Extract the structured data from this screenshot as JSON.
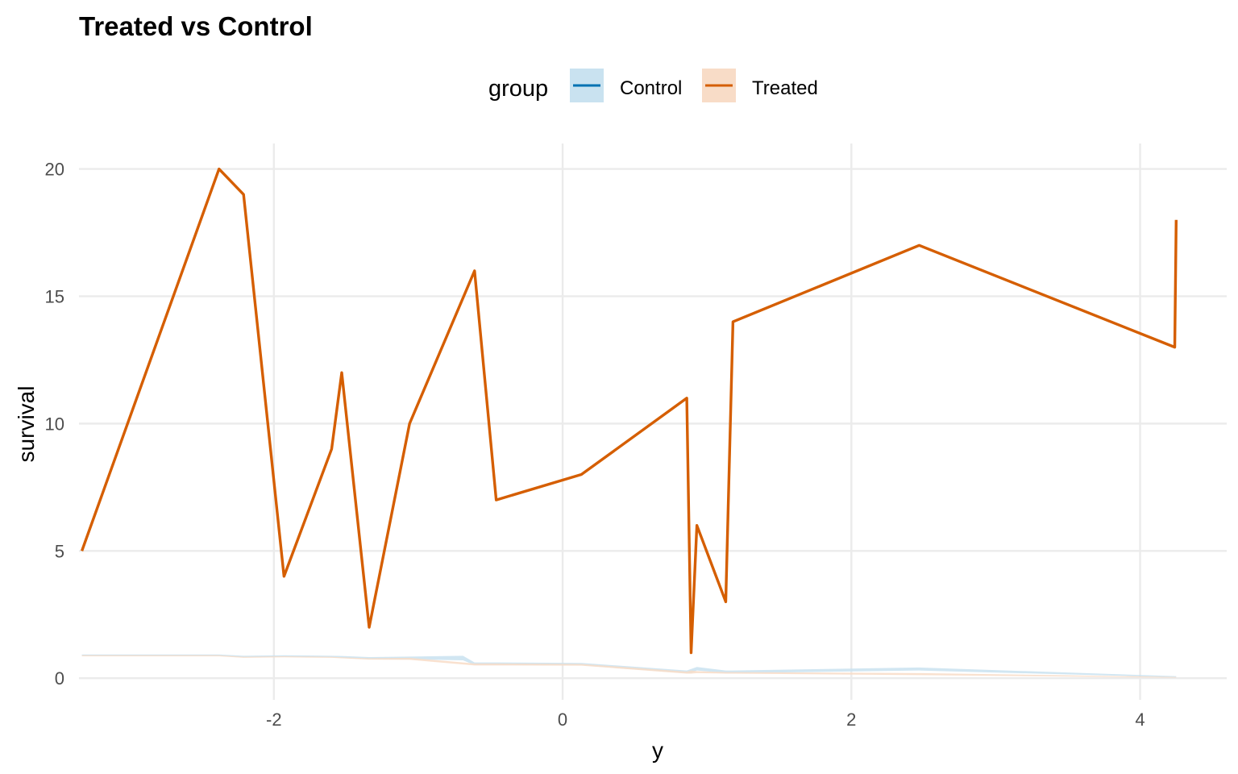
{
  "chart_data": {
    "type": "line",
    "title": "Treated vs Control",
    "xlabel": "y",
    "ylabel": "survival",
    "xlim": [
      -3.35,
      4.6
    ],
    "ylim": [
      -0.85,
      21
    ],
    "x_ticks": [
      -2,
      0,
      2,
      4
    ],
    "x_tick_labels": [
      "-2",
      "0",
      "2",
      "4"
    ],
    "y_ticks": [
      0,
      5,
      10,
      15,
      20
    ],
    "y_tick_labels": [
      "0",
      "5",
      "10",
      "15",
      "20"
    ],
    "grid": true,
    "legend": {
      "title": "group",
      "position": "top",
      "entries": [
        "Control",
        "Treated"
      ]
    },
    "series": [
      {
        "name": "Control",
        "color": "#0072B2",
        "fill": "#c9e2f0",
        "x": [
          -3.33,
          -2.38,
          -2.21,
          -1.93,
          -1.6,
          -1.53,
          -1.34,
          -1.06,
          -0.69,
          -0.61,
          -0.46,
          0.13,
          0.86,
          0.89,
          0.93,
          1.13,
          1.18,
          2.47,
          4.24,
          4.25
        ],
        "lower": [
          0.88,
          0.88,
          0.82,
          0.84,
          0.82,
          0.8,
          0.75,
          0.74,
          0.7,
          0.52,
          0.52,
          0.51,
          0.2,
          0.2,
          0.3,
          0.2,
          0.2,
          0.3,
          0.04,
          0.04
        ],
        "upper": [
          0.93,
          0.93,
          0.88,
          0.9,
          0.88,
          0.87,
          0.83,
          0.85,
          0.88,
          0.62,
          0.62,
          0.6,
          0.3,
          0.36,
          0.44,
          0.3,
          0.3,
          0.42,
          0.08,
          0.08
        ]
      },
      {
        "name": "Treated",
        "color": "#D55E00",
        "fill": "#f8dcc7",
        "x": [
          -3.33,
          -2.38,
          -2.21,
          -1.93,
          -1.6,
          -1.53,
          -1.34,
          -1.06,
          -0.61,
          -0.46,
          0.13,
          0.86,
          0.89,
          0.93,
          1.13,
          1.18,
          2.47,
          4.24,
          4.25
        ],
        "values": [
          5,
          20,
          19,
          4,
          9,
          12,
          2,
          10,
          16,
          7,
          8,
          11,
          1,
          6,
          3,
          14,
          17,
          13,
          18
        ],
        "lower": [
          0.86,
          0.86,
          0.8,
          0.82,
          0.8,
          0.78,
          0.73,
          0.72,
          0.5,
          0.5,
          0.49,
          0.18,
          0.18,
          0.2,
          0.18,
          0.18,
          0.12,
          0.02,
          0.02
        ],
        "upper": [
          0.9,
          0.9,
          0.84,
          0.86,
          0.84,
          0.82,
          0.78,
          0.8,
          0.58,
          0.58,
          0.56,
          0.26,
          0.3,
          0.28,
          0.24,
          0.24,
          0.2,
          0.05,
          0.05
        ]
      }
    ]
  }
}
